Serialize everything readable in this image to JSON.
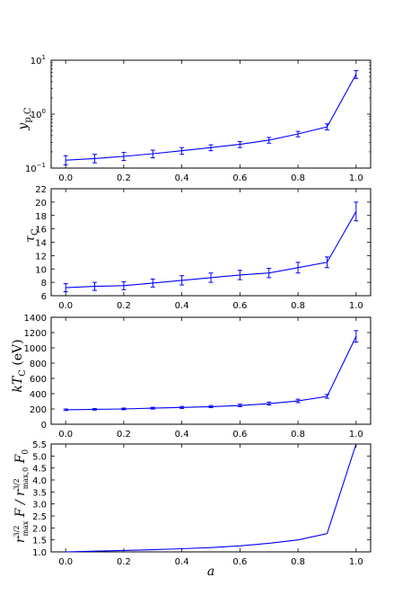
{
  "colors": {
    "series": "#0000ff",
    "axes": "#000000",
    "background": "#ffffff"
  },
  "chart_data": [
    {
      "type": "line",
      "xlabel": "",
      "ylabel": "y_p,C",
      "yscale": "log",
      "xlim": [
        -0.05,
        1.05
      ],
      "ylim": [
        0.1,
        10
      ],
      "x": [
        0.0,
        0.1,
        0.2,
        0.3,
        0.4,
        0.5,
        0.6,
        0.7,
        0.8,
        0.9,
        1.0
      ],
      "xticks": [
        "0.0",
        "0.2",
        "0.4",
        "0.6",
        "0.8",
        "1.0"
      ],
      "xtick_values": [
        0,
        0.2,
        0.4,
        0.6,
        0.8,
        1.0
      ],
      "yticks": [
        {
          "value": 0.1,
          "base": "10",
          "exp": "−1"
        },
        {
          "value": 1,
          "base": "10",
          "exp": "0"
        },
        {
          "value": 10,
          "base": "10",
          "exp": "1"
        }
      ],
      "series": [
        {
          "values": [
            0.14,
            0.15,
            0.165,
            0.185,
            0.21,
            0.24,
            0.275,
            0.33,
            0.43,
            0.58,
            5.5
          ],
          "err_low": [
            0.115,
            0.125,
            0.138,
            0.155,
            0.18,
            0.21,
            0.24,
            0.29,
            0.38,
            0.51,
            4.6
          ],
          "err_high": [
            0.17,
            0.18,
            0.195,
            0.215,
            0.24,
            0.27,
            0.31,
            0.37,
            0.48,
            0.66,
            6.4
          ]
        }
      ],
      "grid": false
    },
    {
      "type": "line",
      "xlabel": "",
      "ylabel": "τ_C",
      "yscale": "linear",
      "xlim": [
        -0.05,
        1.05
      ],
      "ylim": [
        6,
        22
      ],
      "x": [
        0.0,
        0.1,
        0.2,
        0.3,
        0.4,
        0.5,
        0.6,
        0.7,
        0.8,
        0.9,
        1.0
      ],
      "xticks": [
        "0.0",
        "0.2",
        "0.4",
        "0.6",
        "0.8",
        "1.0"
      ],
      "xtick_values": [
        0,
        0.2,
        0.4,
        0.6,
        0.8,
        1.0
      ],
      "yticks": [
        "6",
        "8",
        "10",
        "12",
        "14",
        "16",
        "18",
        "20",
        "22"
      ],
      "ytick_values": [
        6,
        8,
        10,
        12,
        14,
        16,
        18,
        20,
        22
      ],
      "series": [
        {
          "values": [
            7.2,
            7.4,
            7.5,
            7.9,
            8.3,
            8.7,
            9.1,
            9.4,
            10.2,
            11.0,
            18.6
          ],
          "err_low": [
            6.6,
            6.8,
            6.9,
            7.3,
            7.6,
            8.0,
            8.4,
            8.7,
            9.4,
            10.2,
            17.2
          ],
          "err_high": [
            7.8,
            8.0,
            8.1,
            8.5,
            9.0,
            9.4,
            9.8,
            10.1,
            11.0,
            11.8,
            20.0
          ]
        }
      ],
      "grid": false
    },
    {
      "type": "line",
      "xlabel": "",
      "ylabel": "kT_C (eV)",
      "yscale": "linear",
      "xlim": [
        -0.05,
        1.05
      ],
      "ylim": [
        0,
        1400
      ],
      "x": [
        0.0,
        0.1,
        0.2,
        0.3,
        0.4,
        0.5,
        0.6,
        0.7,
        0.8,
        0.9,
        1.0
      ],
      "xticks": [
        "0.0",
        "0.2",
        "0.4",
        "0.6",
        "0.8",
        "1.0"
      ],
      "xtick_values": [
        0,
        0.2,
        0.4,
        0.6,
        0.8,
        1.0
      ],
      "yticks": [
        "0",
        "200",
        "400",
        "600",
        "800",
        "1000",
        "1200",
        "1400"
      ],
      "ytick_values": [
        0,
        200,
        400,
        600,
        800,
        1000,
        1200,
        1400
      ],
      "series": [
        {
          "values": [
            190,
            195,
            200,
            210,
            220,
            230,
            245,
            270,
            305,
            365,
            1150
          ],
          "err_low": [
            180,
            185,
            190,
            198,
            207,
            217,
            230,
            252,
            283,
            340,
            1075
          ],
          "err_high": [
            200,
            205,
            212,
            222,
            233,
            245,
            262,
            290,
            328,
            390,
            1225
          ]
        }
      ],
      "grid": false
    },
    {
      "type": "line",
      "xlabel": "a",
      "ylabel": "r_max^3/2 F / r_max,0^3/2 F_0",
      "yscale": "linear",
      "xlim": [
        -0.05,
        1.05
      ],
      "ylim": [
        1.0,
        5.5
      ],
      "x": [
        0.0,
        0.1,
        0.2,
        0.3,
        0.4,
        0.5,
        0.6,
        0.7,
        0.8,
        0.9,
        1.0
      ],
      "xticks": [
        "0.0",
        "0.2",
        "0.4",
        "0.6",
        "0.8",
        "1.0"
      ],
      "xtick_values": [
        0,
        0.2,
        0.4,
        0.6,
        0.8,
        1.0
      ],
      "yticks": [
        "1.0",
        "1.5",
        "2.0",
        "2.5",
        "3.0",
        "3.5",
        "4.0",
        "4.5",
        "5.0",
        "5.5"
      ],
      "ytick_values": [
        1.0,
        1.5,
        2.0,
        2.5,
        3.0,
        3.5,
        4.0,
        4.5,
        5.0,
        5.5
      ],
      "series": [
        {
          "values": [
            1.0,
            1.03,
            1.06,
            1.09,
            1.13,
            1.18,
            1.25,
            1.36,
            1.5,
            1.76,
            5.5
          ]
        }
      ],
      "grid": false
    }
  ]
}
